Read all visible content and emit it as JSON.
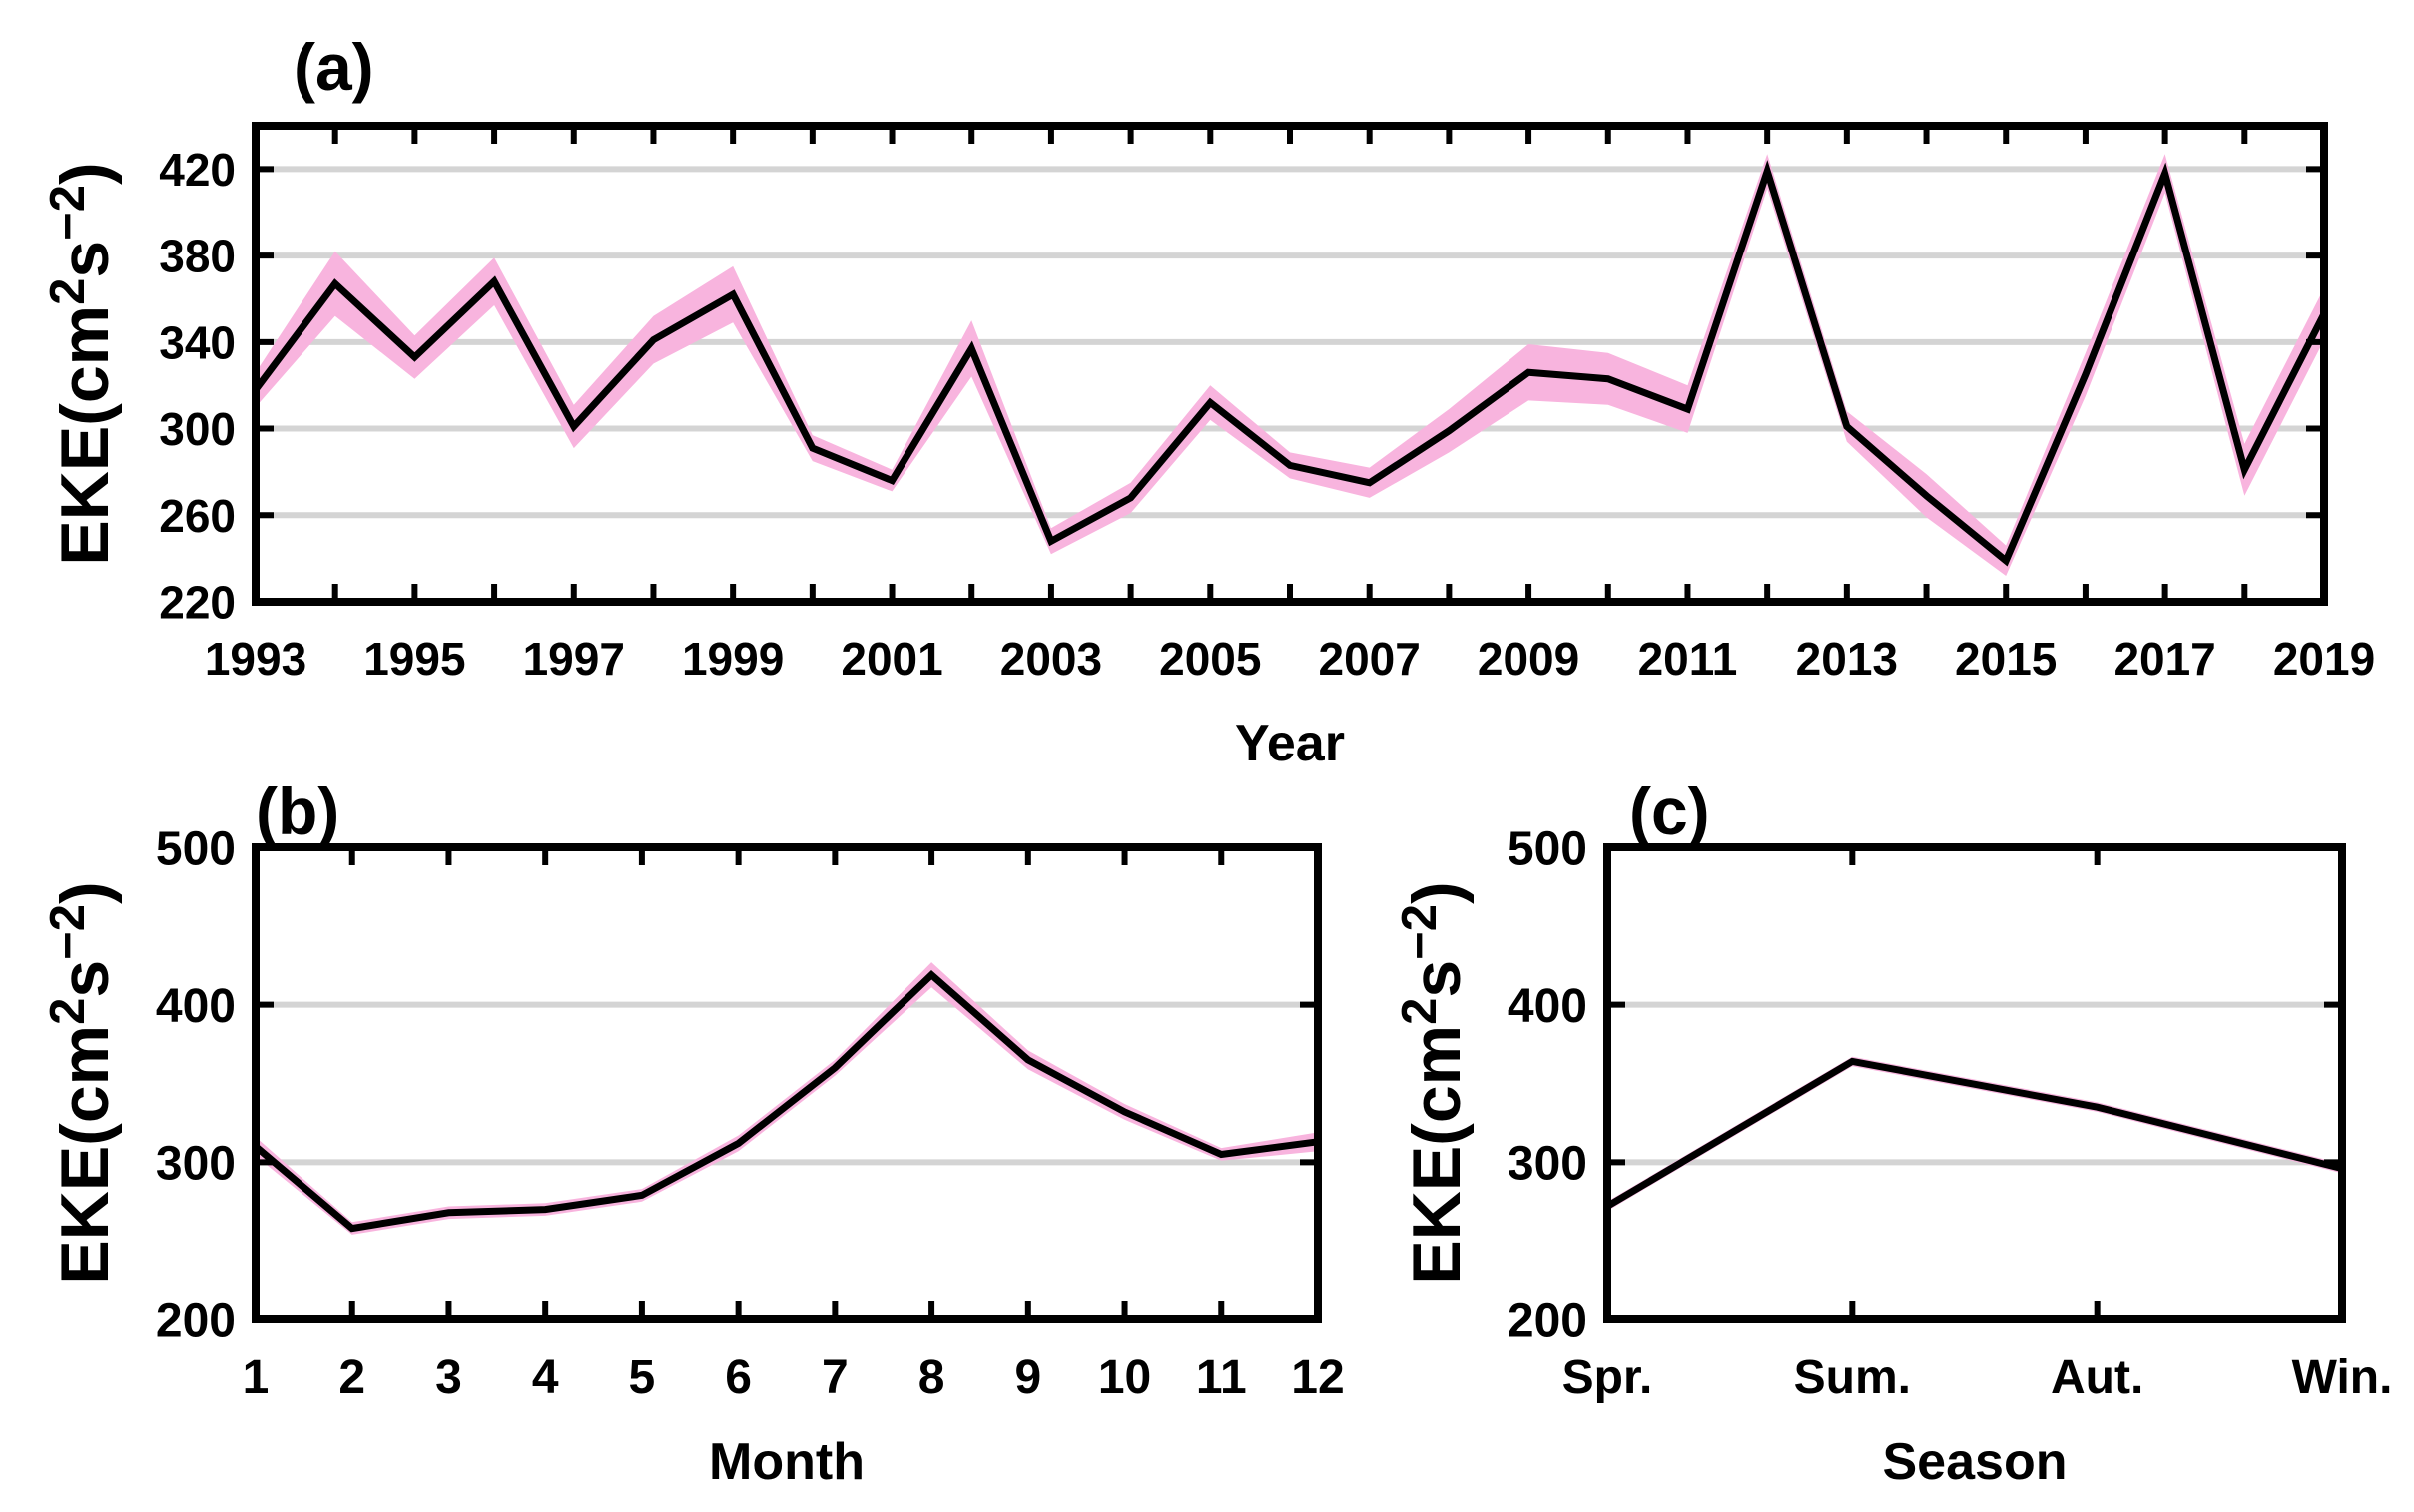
{
  "chart_data": [
    {
      "panel": "(a)",
      "type": "line",
      "title": "",
      "xlabel": "Year",
      "ylabel": "EKE(cm²s⁻²)",
      "ylabel_parts": {
        "base": "EKE(cm",
        "sup1": "2",
        "mid": "s",
        "sup2": "−2",
        "end": ")"
      },
      "xlim": [
        1993,
        2019
      ],
      "ylim": [
        220,
        440
      ],
      "xticks": [
        1993,
        1994,
        1995,
        1996,
        1997,
        1998,
        1999,
        2000,
        2001,
        2002,
        2003,
        2004,
        2005,
        2006,
        2007,
        2008,
        2009,
        2010,
        2011,
        2012,
        2013,
        2014,
        2015,
        2016,
        2017,
        2018,
        2019
      ],
      "xtick_labels": [
        "1993",
        "",
        "1995",
        "",
        "1997",
        "",
        "1999",
        "",
        "2001",
        "",
        "2003",
        "",
        "2005",
        "",
        "2007",
        "",
        "2009",
        "",
        "2011",
        "",
        "2013",
        "",
        "2015",
        "",
        "2017",
        "",
        "2019"
      ],
      "yticks": [
        220,
        260,
        300,
        340,
        380,
        420
      ],
      "ytick_labels": [
        "220",
        "260",
        "300",
        "340",
        "380",
        "420"
      ],
      "grid_y": [
        260,
        300,
        340,
        380,
        420
      ],
      "x": [
        1993,
        1994,
        1995,
        1996,
        1997,
        1998,
        1999,
        2000,
        2001,
        2002,
        2003,
        2004,
        2005,
        2006,
        2007,
        2008,
        2009,
        2010,
        2011,
        2012,
        2013,
        2014,
        2015,
        2016,
        2017,
        2018,
        2019
      ],
      "series": [
        {
          "name": "EKE",
          "color": "#000000",
          "values": [
            318,
            367,
            333,
            368,
            301,
            341,
            362,
            291,
            276,
            337,
            248,
            268,
            312,
            283,
            275,
            299,
            326,
            323,
            309,
            419,
            301,
            269,
            239,
            325,
            418,
            281,
            353
          ],
          "band_half_width": [
            8,
            15,
            10,
            11,
            10,
            11,
            13,
            6,
            5,
            13,
            6,
            7,
            8,
            6,
            7,
            10,
            13,
            12,
            11,
            8,
            7,
            10,
            7,
            10,
            9,
            12,
            12
          ]
        }
      ],
      "band_color": "#f8b4de"
    },
    {
      "panel": "(b)",
      "type": "line",
      "title": "",
      "xlabel": "Month",
      "ylabel": "EKE(cm²s⁻²)",
      "ylabel_parts": {
        "base": "EKE(cm",
        "sup1": "2",
        "mid": "s",
        "sup2": "−2",
        "end": ")"
      },
      "xlim": [
        1,
        12
      ],
      "ylim": [
        200,
        500
      ],
      "xticks": [
        1,
        2,
        3,
        4,
        5,
        6,
        7,
        8,
        9,
        10,
        11,
        12
      ],
      "xtick_labels": [
        "1",
        "2",
        "3",
        "4",
        "5",
        "6",
        "7",
        "8",
        "9",
        "10",
        "11",
        "12"
      ],
      "yticks": [
        200,
        300,
        400,
        500
      ],
      "ytick_labels": [
        "200",
        "300",
        "400",
        "500"
      ],
      "grid_y": [
        300,
        400
      ],
      "x": [
        1,
        2,
        3,
        4,
        5,
        6,
        7,
        8,
        9,
        10,
        11,
        12
      ],
      "series": [
        {
          "name": "EKE",
          "color": "#000000",
          "values": [
            310,
            258,
            268,
            270,
            279,
            312,
            360,
            419,
            365,
            332,
            305,
            313
          ],
          "band_half_width": [
            6,
            4,
            4,
            4,
            4,
            5,
            5,
            8,
            6,
            5,
            4,
            6
          ]
        }
      ],
      "band_color": "#f8b4de"
    },
    {
      "panel": "(c)",
      "type": "line",
      "title": "",
      "xlabel": "Season",
      "ylabel": "EKE(cm²s⁻²)",
      "ylabel_parts": {
        "base": "EKE(cm",
        "sup1": "2",
        "mid": "s",
        "sup2": "−2",
        "end": ")"
      },
      "xlim": [
        0,
        3
      ],
      "ylim": [
        200,
        500
      ],
      "categories": [
        "Spr.",
        "Sum.",
        "Aut.",
        "Win."
      ],
      "xticks": [
        0,
        1,
        2,
        3
      ],
      "xtick_labels": [
        "Spr.",
        "Sum.",
        "Aut.",
        "Win."
      ],
      "yticks": [
        200,
        300,
        400,
        500
      ],
      "ytick_labels": [
        "200",
        "300",
        "400",
        "500"
      ],
      "grid_y": [
        300,
        400
      ],
      "x": [
        0,
        1,
        2,
        3
      ],
      "series": [
        {
          "name": "EKE",
          "color": "#000000",
          "values": [
            272,
            364,
            335,
            296
          ],
          "band_half_width": [
            3,
            3,
            3,
            3
          ]
        }
      ],
      "band_color": "#f8b4de"
    }
  ]
}
